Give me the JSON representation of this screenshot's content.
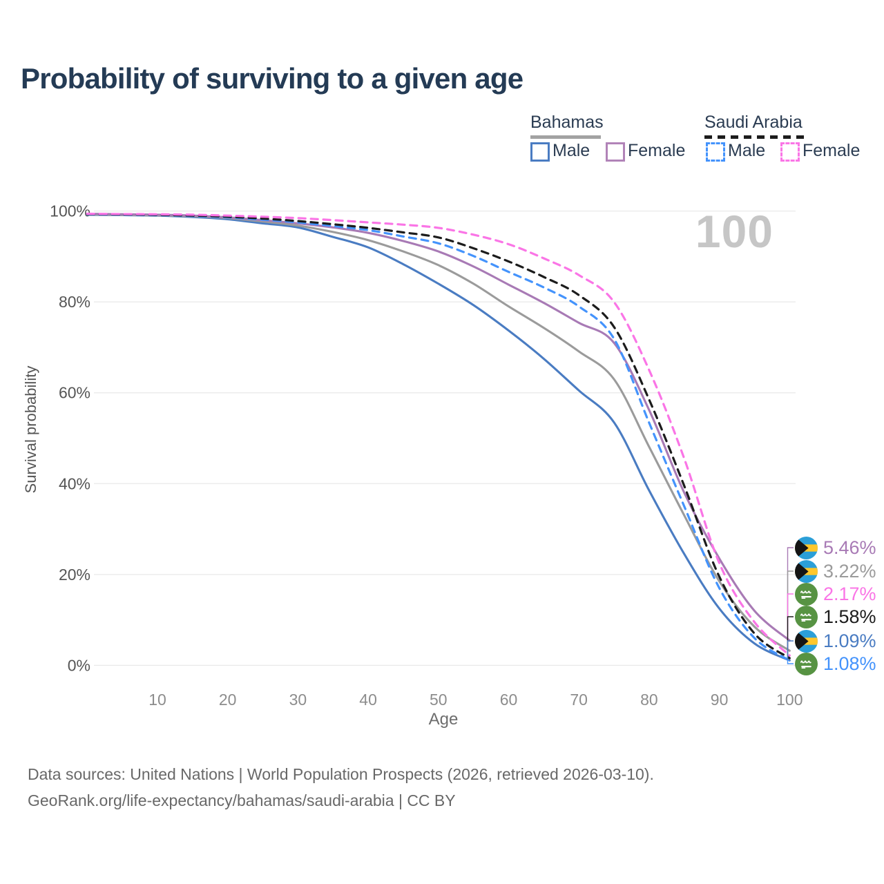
{
  "title": "Probability of surviving to a given age",
  "legend": {
    "bahamas": {
      "title": "Bahamas",
      "male": "Male",
      "female": "Female"
    },
    "saudi_arabia": {
      "title": "Saudi Arabia",
      "male": "Male",
      "female": "Female"
    }
  },
  "footer": {
    "line1": "Data sources: United Nations | World Population Prospects (2026, retrieved 2026-03-10).",
    "line2": "GeoRank.org/life-expectancy/bahamas/saudi-arabia | CC BY"
  },
  "colors": {
    "title_text": "#243b55",
    "bahamas_male": "#4a7cc2",
    "bahamas_all": "#9b9b9b",
    "bahamas_female": "#a87ab5",
    "saudi_male": "#4493fc",
    "saudi_all": "#1c1c1c",
    "saudi_female": "#fa75e6",
    "gridline": "#e9e9e9",
    "watermark_gray": "#c6c6c6"
  },
  "chart_data": {
    "type": "line",
    "title": "Probability of surviving to a given age",
    "xlabel": "Age",
    "ylabel": "Survival probability",
    "xlim": [
      0,
      100
    ],
    "ylim": [
      0,
      100
    ],
    "grid": "horizontal",
    "legend_position": "top-right",
    "watermark": "100",
    "x_ticks": [
      "10",
      "20",
      "30",
      "40",
      "50",
      "60",
      "70",
      "80",
      "90",
      "100"
    ],
    "x_tick_values": [
      10,
      20,
      30,
      40,
      50,
      60,
      70,
      80,
      90,
      100
    ],
    "y_ticks": [
      "100%",
      "80%",
      "60%",
      "40%",
      "20%",
      "0%"
    ],
    "y_tick_values": [
      100,
      80,
      60,
      40,
      20,
      0
    ],
    "ages": [
      0,
      5,
      10,
      15,
      20,
      25,
      30,
      35,
      40,
      45,
      50,
      55,
      60,
      65,
      70,
      75,
      80,
      85,
      90,
      95,
      100
    ],
    "series": [
      {
        "name": "Bahamas Male",
        "flag": "bahamas",
        "style": "solid",
        "color": "#4a7cc2",
        "end_label": "1.09%",
        "values": [
          99.2,
          99.1,
          99.0,
          98.7,
          98.2,
          97.3,
          96.4,
          94.3,
          92.0,
          88.3,
          84.0,
          79.3,
          73.7,
          67.5,
          60.5,
          53.5,
          38.5,
          24.5,
          12.5,
          4.8,
          1.09
        ]
      },
      {
        "name": "Bahamas",
        "flag": "bahamas",
        "style": "solid",
        "color": "#9b9b9b",
        "end_label": "3.22%",
        "values": [
          99.25,
          99.15,
          99.05,
          98.85,
          98.45,
          97.7,
          96.8,
          95.4,
          93.6,
          91.1,
          88.1,
          84.0,
          79.0,
          74.3,
          69.1,
          63.0,
          48.1,
          33.0,
          18.5,
          8.5,
          3.22
        ]
      },
      {
        "name": "Bahamas Female",
        "flag": "bahamas",
        "style": "solid",
        "color": "#a87ab5",
        "end_label": "5.46%",
        "values": [
          99.4,
          99.3,
          99.2,
          99.0,
          98.6,
          98.0,
          97.3,
          96.4,
          95.2,
          93.4,
          91.1,
          87.8,
          83.8,
          79.8,
          75.4,
          71.0,
          56.2,
          38.0,
          23.5,
          12.0,
          5.46
        ]
      },
      {
        "name": "Saudi Arabia Male",
        "flag": "saudi-arabia",
        "style": "dashed",
        "color": "#4493fc",
        "end_label": "1.08%",
        "values": [
          99.3,
          99.2,
          99.1,
          98.9,
          98.6,
          98.1,
          97.5,
          96.7,
          95.8,
          94.4,
          92.9,
          90.1,
          86.6,
          83.2,
          79.0,
          71.9,
          53.4,
          35.0,
          17.0,
          6.0,
          1.08
        ]
      },
      {
        "name": "Saudi Arabia",
        "flag": "saudi-arabia",
        "style": "dashed",
        "color": "#1c1c1c",
        "end_label": "1.58%",
        "values": [
          99.35,
          99.27,
          99.18,
          99.0,
          98.75,
          98.35,
          97.8,
          97.1,
          96.3,
          95.3,
          94.2,
          91.8,
          88.9,
          85.5,
          81.5,
          74.5,
          58.5,
          39.5,
          19.5,
          7.0,
          1.58
        ]
      },
      {
        "name": "Saudi Arabia Female",
        "flag": "saudi-arabia",
        "style": "dashed",
        "color": "#fa75e6",
        "end_label": "2.17%",
        "values": [
          99.4,
          99.35,
          99.3,
          99.2,
          99.0,
          98.75,
          98.45,
          98.0,
          97.5,
          97.0,
          96.3,
          94.8,
          92.7,
          89.6,
          85.9,
          80.0,
          65.0,
          45.5,
          22.5,
          9.5,
          2.17
        ]
      }
    ]
  }
}
